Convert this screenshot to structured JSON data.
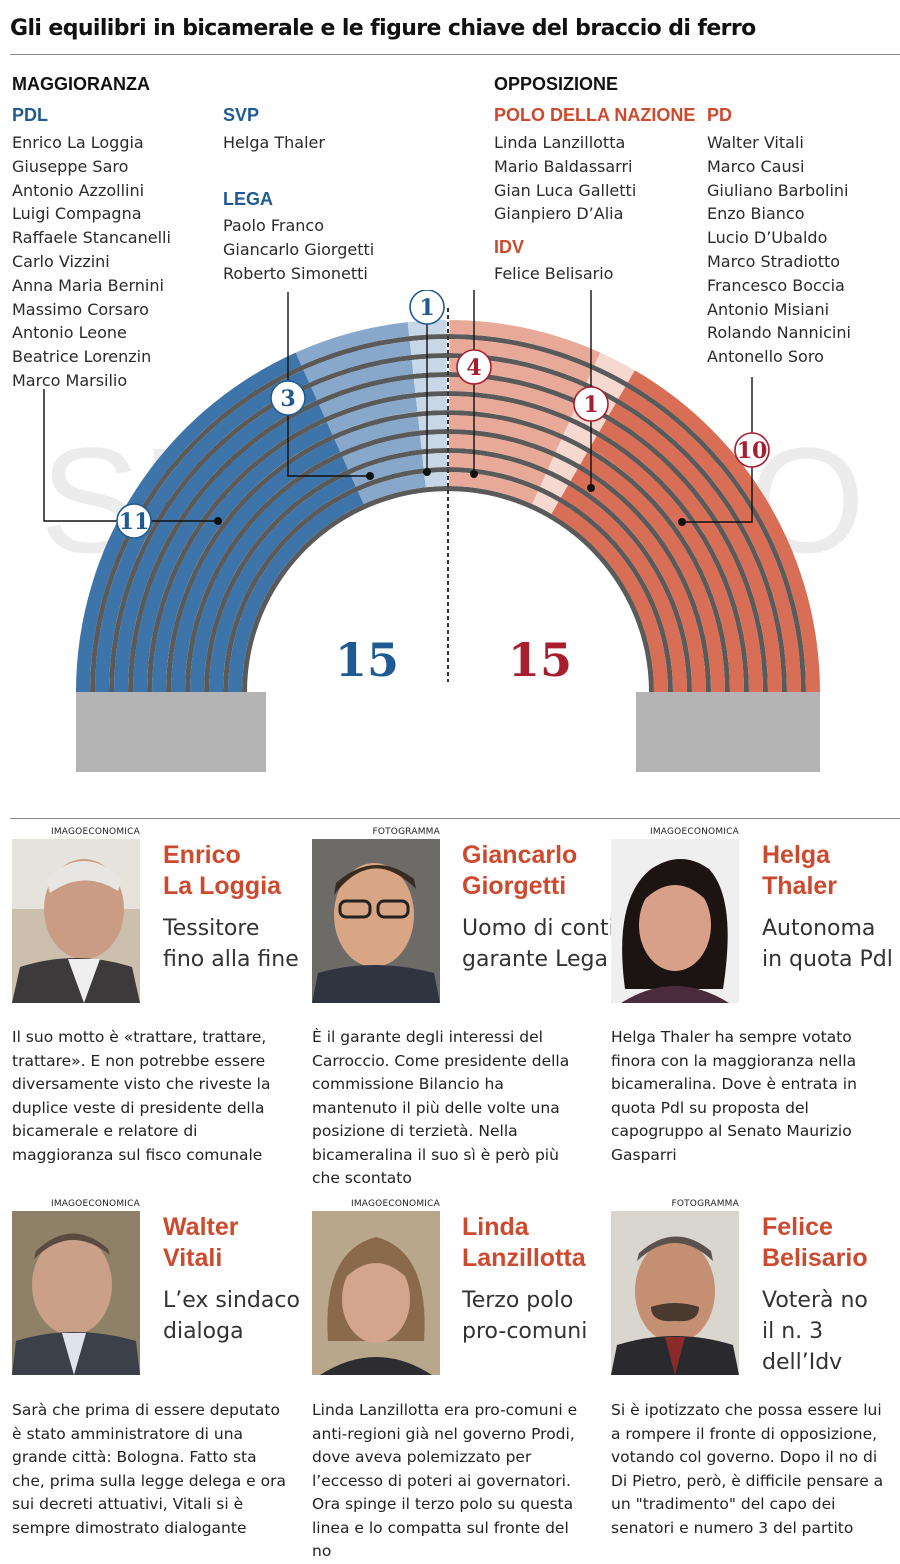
{
  "title": "Gli equilibri in bicamerale e le figure chiave del braccio di ferro",
  "majority": {
    "header": "MAGGIORANZA",
    "pdl": {
      "label": "PDL",
      "names": [
        "Enrico La Loggia",
        "Giuseppe Saro",
        "Antonio Azzollini",
        "Luigi Compagna",
        "Raffaele Stancanelli",
        "Carlo Vizzini",
        "Anna Maria Bernini",
        "Massimo Corsaro",
        "Antonio Leone",
        "Beatrice Lorenzin",
        "Marco Marsilio"
      ]
    },
    "svp": {
      "label": "SVP",
      "names": [
        "Helga Thaler"
      ]
    },
    "lega": {
      "label": "LEGA",
      "names": [
        "Paolo Franco",
        "Giancarlo Giorgetti",
        "Roberto Simonetti"
      ]
    }
  },
  "opposition": {
    "header": "OPPOSIZIONE",
    "polo": {
      "label": "POLO DELLA NAZIONE",
      "names": [
        "Linda Lanzillotta",
        "Mario Baldassarri",
        "Gian Luca Galletti",
        "Gianpiero D’Alia"
      ]
    },
    "idv": {
      "label": "IDV",
      "names": [
        "Felice Belisario"
      ]
    },
    "pd": {
      "label": "PD",
      "names": [
        "Walter Vitali",
        "Marco Causi",
        "Giuliano Barbolini",
        "Enzo Bianco",
        "Lucio D’Ubaldo",
        "Marco Stradiotto",
        "Francesco Boccia",
        "Antonio Misiani",
        "Rolando Nannicini",
        "Antonello Soro"
      ]
    }
  },
  "chamber": {
    "word_yes": "SI",
    "word_no": "NO",
    "total_yes": "15",
    "total_no": "15",
    "counts": {
      "pdl": "11",
      "lega": "3",
      "svp": "1",
      "polo": "4",
      "idv": "1",
      "pd": "10"
    },
    "seats": {
      "pdl": 11,
      "lega": 3,
      "svp": 1,
      "polo": 4,
      "idv": 1,
      "pd": 10
    },
    "colors": {
      "blue_dark": "#3d74a9",
      "blue_mid": "#87a8cb",
      "blue_light": "#c8d7e7",
      "red_dark": "#d86e55",
      "red_mid": "#e9a998",
      "red_light": "#f5d9d0",
      "ring_dark": "#5a5a5a",
      "base": "#b4b4b4",
      "number_blue": "#1f5a93",
      "number_red": "#a81e2e"
    }
  },
  "profiles": [
    {
      "credit": "IMAGOECONOMICA",
      "name_line1": "Enrico",
      "name_line2": "La Loggia",
      "tag_line1": "Tessitore",
      "tag_line2": "fino alla fine",
      "bio": "Il suo motto è «trattare, trattare, trattare». E non potrebbe essere diversamente visto che riveste la duplice veste di presidente della bicamerale e relatore di maggioranza sul fisco comunale"
    },
    {
      "credit": "FOTOGRAMMA",
      "name_line1": "Giancarlo",
      "name_line2": "Giorgetti",
      "tag_line1": "Uomo di conti",
      "tag_line2": "garante Lega",
      "bio": "È il garante degli interessi del Carroccio. Come presidente della commissione Bilancio ha mantenuto il più delle volte una posizione di terzietà. Nella bicameralina il suo sì è però più che scontato"
    },
    {
      "credit": "IMAGOECONOMICA",
      "name_line1": "Helga",
      "name_line2": "Thaler",
      "tag_line1": "Autonoma",
      "tag_line2": "in quota Pdl",
      "bio": "Helga Thaler ha sempre votato finora con la maggioranza nella bicameralina. Dove è entrata in quota Pdl su proposta del capogruppo al Senato Maurizio Gasparri"
    },
    {
      "credit": "IMAGOECONOMICA",
      "name_line1": "Walter",
      "name_line2": "Vitali",
      "tag_line1": "L’ex sindaco",
      "tag_line2": "dialoga",
      "bio": "Sarà che prima di essere deputato è stato amministratore di una grande città: Bologna. Fatto sta che, prima sulla legge delega e ora sui decreti attuativi, Vitali si è sempre dimostrato dialogante"
    },
    {
      "credit": "IMAGOECONOMICA",
      "name_line1": "Linda",
      "name_line2": "Lanzillotta",
      "tag_line1": "Terzo polo",
      "tag_line2": "pro-comuni",
      "bio": "Linda Lanzillotta era pro-comuni e anti-regioni già nel governo Prodi, dove aveva polemizzato per l’eccesso di poteri ai governatori. Ora spinge il terzo polo su questa linea e lo compatta sul fronte del no"
    },
    {
      "credit": "FOTOGRAMMA",
      "name_line1": "Felice",
      "name_line2": "Belisario",
      "tag_line1": "Voterà no",
      "tag_line2": "il n. 3 dell’Idv",
      "bio": "Si è ipotizzato che possa essere lui a rompere il fronte di opposizione, votando col governo. Dopo il no di Di Pietro, però, è difficile pensare a un \"tradimento\" del capo dei senatori e numero 3 del partito"
    }
  ]
}
